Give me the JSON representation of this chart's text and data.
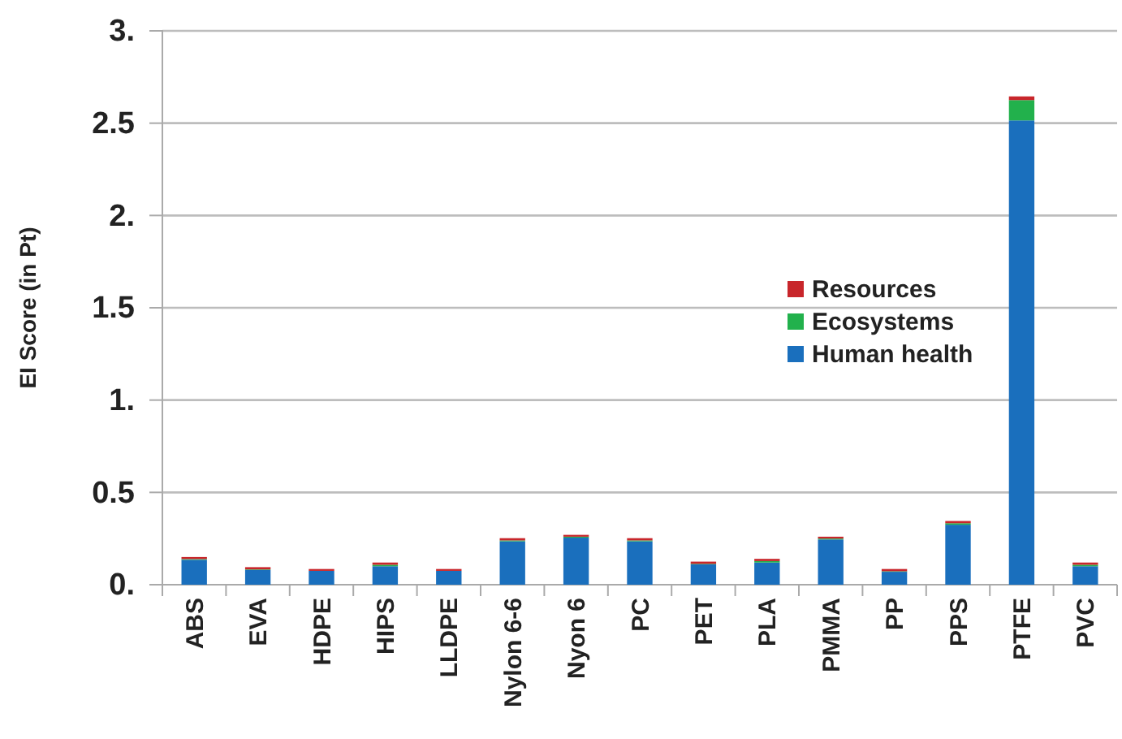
{
  "chart_data": {
    "type": "bar",
    "stacked": true,
    "ylabel": "EI Score (in Pt)",
    "categories": [
      "ABS",
      "EVA",
      "HDPE",
      "HIPS",
      "LLDPE",
      "Nylon 6-6",
      "Nyon 6",
      "PC",
      "PET",
      "PLA",
      "PMMA",
      "PP",
      "PPS",
      "PTFE",
      "PVC"
    ],
    "series": [
      {
        "name": "Human health",
        "color": "#1a6fbd",
        "values": [
          0.135,
          0.08,
          0.075,
          0.1,
          0.075,
          0.235,
          0.255,
          0.235,
          0.11,
          0.12,
          0.245,
          0.07,
          0.325,
          2.515,
          0.1
        ]
      },
      {
        "name": "Ecosystems",
        "color": "#22b14c",
        "values": [
          0.004,
          0.003,
          null,
          0.008,
          null,
          0.005,
          0.005,
          0.005,
          0.003,
          0.008,
          0.005,
          0.003,
          0.008,
          0.11,
          0.008
        ]
      },
      {
        "name": "Resources",
        "color": "#c8262b",
        "values": [
          0.011,
          0.012,
          0.01,
          0.012,
          0.01,
          0.012,
          0.01,
          0.012,
          0.012,
          0.012,
          0.01,
          0.012,
          0.012,
          0.02,
          0.012
        ]
      }
    ],
    "ylim": [
      0,
      3
    ],
    "yticks": [
      {
        "value": 0,
        "label": "0."
      },
      0.5,
      {
        "value": 1,
        "label": "1."
      },
      1.5,
      {
        "value": 2,
        "label": "2."
      },
      2.5,
      {
        "value": 3,
        "label": "3."
      }
    ],
    "grid": "y",
    "legend": "right"
  }
}
